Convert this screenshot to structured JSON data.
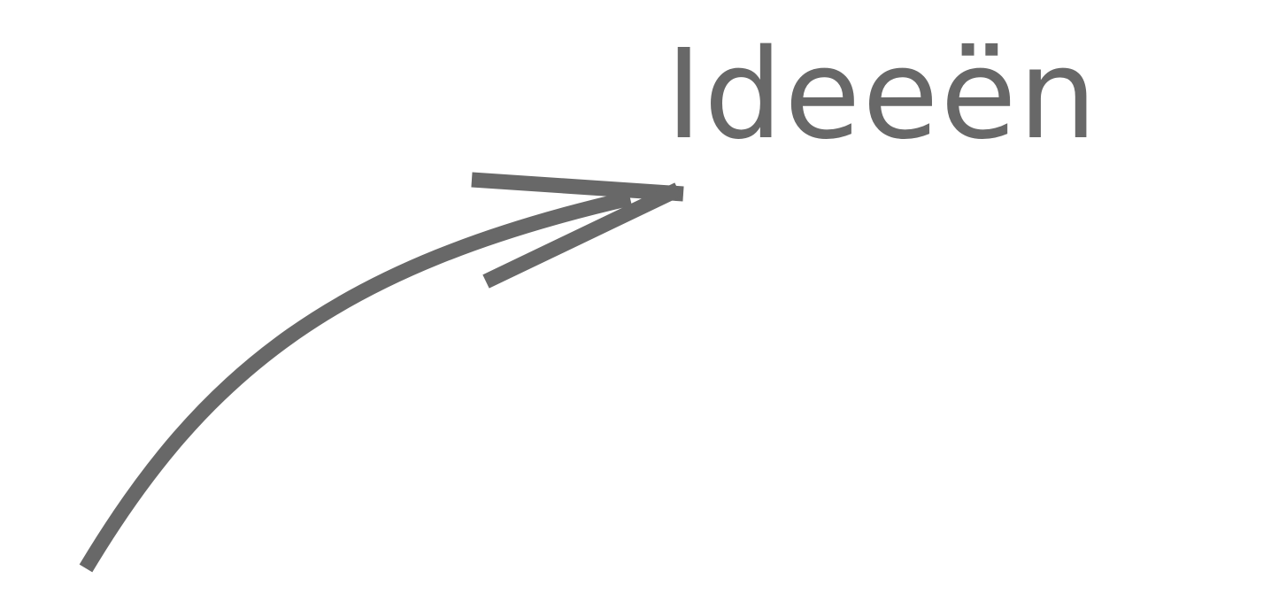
{
  "label": {
    "text": "Ideeën"
  },
  "colors": {
    "ink": "#686868",
    "background": "#ffffff"
  },
  "arrow": {
    "icon": "curved-arrow-icon"
  }
}
